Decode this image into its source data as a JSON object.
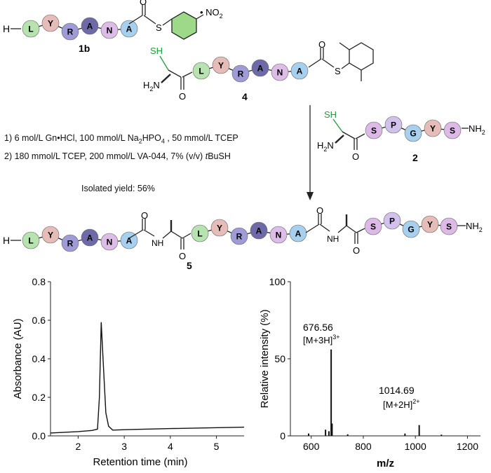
{
  "colors": {
    "L": "#b6e3b0",
    "Y": "#e6bcb8",
    "R": "#9f9bd6",
    "A": "#6e6aa8",
    "N": "#ddbde7",
    "A2": "#a7d0ef",
    "S": "#dcb9e6",
    "P": "#d1c1ec",
    "G": "#a7d0ef",
    "phenyl": "#9ed98a",
    "thiol": "#1e9e3c",
    "arrow": "#222222"
  },
  "compounds": {
    "c1b": {
      "label": "1b",
      "h_prefix": "H",
      "chain": [
        "L",
        "Y",
        "R",
        "A",
        "N",
        "A"
      ],
      "nitro": "NO2"
    },
    "c4": {
      "label": "4",
      "sh": "SH",
      "h2n": "H2N",
      "chain": [
        "L",
        "Y",
        "R",
        "A",
        "N",
        "A"
      ]
    },
    "c2": {
      "label": "2",
      "sh": "SH",
      "h2n": "H2N",
      "chain": [
        "S",
        "P",
        "G",
        "Y",
        "S"
      ],
      "nh2": "NH2"
    },
    "c5": {
      "label": "5",
      "h_prefix": "H",
      "chain1": [
        "L",
        "Y",
        "R",
        "A",
        "N",
        "A"
      ],
      "chain2": [
        "L",
        "Y",
        "R",
        "A",
        "N",
        "A"
      ],
      "chain3": [
        "S",
        "P",
        "G",
        "Y",
        "S"
      ],
      "nh": "NH",
      "nh2": "NH2"
    }
  },
  "conditions": {
    "line1_pre": "1) 6 mol/L Gn•HCl, 100 mmol/L Na",
    "line1_sub1": "2",
    "line1_mid": "HPO",
    "line1_sub2": "4",
    "line1_post": " , 50 mmol/L TCEP",
    "line2_pre": "2) 180 mmol/L TCEP, 200 mmol/L VA-044, 7% (v/v) ",
    "line2_italic": "t",
    "line2_post": "BuSH",
    "yield": "Isolated yield: 56%"
  },
  "atoms": {
    "S": "S",
    "O": "O"
  },
  "chart_data": [
    {
      "type": "line",
      "title": "",
      "xlabel": "Retention time (min)",
      "ylabel": "Absorbance (AU)",
      "xlim": [
        1.4,
        5.6
      ],
      "ylim": [
        0.0,
        0.8
      ],
      "xticks": [
        "2",
        "3",
        "4",
        "5"
      ],
      "yticks": [
        "0.0",
        "0.2",
        "0.4",
        "0.6",
        "0.8"
      ],
      "series": [
        {
          "x": [
            1.4,
            2.0,
            2.3,
            2.42,
            2.46,
            2.5,
            2.54,
            2.6,
            2.66,
            2.75,
            3.0,
            4.0,
            5.6
          ],
          "y": [
            0.015,
            0.022,
            0.028,
            0.035,
            0.2,
            0.59,
            0.4,
            0.12,
            0.05,
            0.03,
            0.032,
            0.038,
            0.045
          ]
        }
      ]
    },
    {
      "type": "bar",
      "title": "",
      "xlabel": "m/z",
      "ylabel": "Relative intensity (%)",
      "xlim": [
        520,
        1250
      ],
      "ylim": [
        0,
        100
      ],
      "xticks": [
        "600",
        "800",
        "1000",
        "1200"
      ],
      "yticks": [
        "0",
        "50",
        "100"
      ],
      "peaks": [
        {
          "mz": 590,
          "intensity": 1.5
        },
        {
          "mz": 655,
          "intensity": 4
        },
        {
          "mz": 668,
          "intensity": 3
        },
        {
          "mz": 676.56,
          "intensity": 56
        },
        {
          "mz": 680,
          "intensity": 8
        },
        {
          "mz": 740,
          "intensity": 1
        },
        {
          "mz": 960,
          "intensity": 1.5
        },
        {
          "mz": 1014.69,
          "intensity": 7
        },
        {
          "mz": 1100,
          "intensity": 0.8
        }
      ],
      "annotations": [
        {
          "mz": "676.56",
          "ion_pre": "[M+3H]",
          "ion_sup": "3+"
        },
        {
          "mz": "1014.69",
          "ion_pre": "[M+2H]",
          "ion_sup": "2+"
        }
      ]
    }
  ]
}
